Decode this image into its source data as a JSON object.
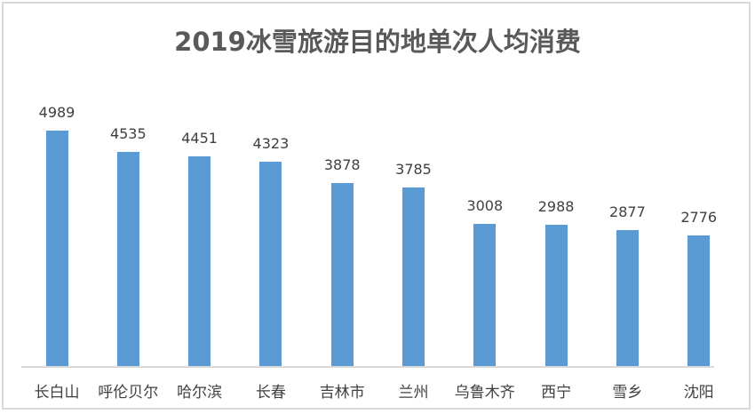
{
  "chart_data": {
    "type": "bar",
    "title": "2019冰雪旅游目的地单次人均消费",
    "categories": [
      "长白山",
      "呼伦贝尔",
      "哈尔滨",
      "长春",
      "吉林市",
      "兰州",
      "乌鲁木齐",
      "西宁",
      "雪乡",
      "沈阳"
    ],
    "values": [
      4989,
      4535,
      4451,
      4323,
      3878,
      3785,
      3008,
      2988,
      2877,
      2776
    ],
    "xlabel": "",
    "ylabel": "",
    "ylim": [
      0,
      5000
    ],
    "grid": false,
    "legend": "none",
    "data_labels": true,
    "bar_color": "#5b9bd5"
  }
}
